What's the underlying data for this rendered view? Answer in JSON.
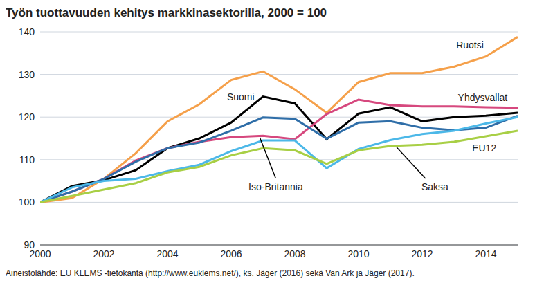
{
  "chart_data": {
    "type": "line",
    "title": "Työn tuottavuuden kehitys markkinasektorilla, 2000 = 100",
    "source": "Aineistolähde: EU KLEMS -tietokanta (http://www.euklems.net/), ks. Jäger (2016) sekä Van Ark ja Jäger (2017).",
    "x": [
      2000,
      2001,
      2002,
      2003,
      2004,
      2005,
      2006,
      2007,
      2008,
      2009,
      2010,
      2011,
      2012,
      2013,
      2014,
      2015
    ],
    "xlim": [
      2000,
      2015
    ],
    "xticks": [
      2000,
      2002,
      2004,
      2006,
      2008,
      2010,
      2012,
      2014
    ],
    "ylim": [
      90,
      140
    ],
    "yticks": [
      90,
      100,
      110,
      120,
      130,
      140
    ],
    "grid": true,
    "series": [
      {
        "name": "Ruotsi",
        "color": "#f5a04a",
        "values": [
          100,
          101,
          105.5,
          111.5,
          119,
          123,
          128.7,
          130.7,
          126.5,
          121,
          128.2,
          130.3,
          130.3,
          131.8,
          134.2,
          138.8
        ]
      },
      {
        "name": "Suomi",
        "color": "#000000",
        "values": [
          100,
          103.8,
          105.2,
          107.5,
          112.7,
          115,
          118.7,
          124.8,
          123.2,
          114.8,
          120.8,
          122.3,
          119,
          120,
          120.3,
          121
        ]
      },
      {
        "name": "Yhdysvallat",
        "color": "#d6487e",
        "values": [
          100,
          102.5,
          105.5,
          109.8,
          112.7,
          114.2,
          115.3,
          115.6,
          114.8,
          120.7,
          124.1,
          122.8,
          122.5,
          122.5,
          122.3,
          122.2
        ]
      },
      {
        "name": "Iso-Britannia",
        "color": "#2f6ea8",
        "values": [
          100,
          102.5,
          105.5,
          109.5,
          112.7,
          114,
          116.8,
          119.9,
          119.6,
          114.9,
          118.7,
          119,
          117.5,
          116.9,
          117.5,
          120.3
        ]
      },
      {
        "name": "Saksa",
        "color": "#4cb8e8",
        "values": [
          100,
          103.5,
          105,
          105.5,
          107.3,
          108.8,
          112,
          114.5,
          114.5,
          108,
          112.5,
          114.6,
          116,
          116.8,
          118.5,
          120
        ]
      },
      {
        "name": "EU12",
        "color": "#a8cf45",
        "values": [
          100,
          101.5,
          103,
          104.5,
          107,
          108.3,
          111,
          112.7,
          112.2,
          109,
          112.2,
          113.2,
          113.5,
          114.2,
          115.5,
          116.8
        ]
      }
    ]
  }
}
